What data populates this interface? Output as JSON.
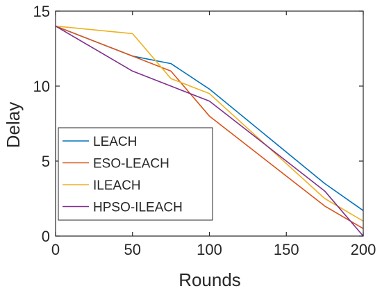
{
  "chart_data": {
    "type": "line",
    "title": "",
    "xlabel": "Rounds",
    "ylabel": "Delay",
    "xlim": [
      0,
      200
    ],
    "ylim": [
      0,
      15
    ],
    "xticks": [
      0,
      50,
      100,
      150,
      200
    ],
    "yticks": [
      0,
      5,
      10,
      15
    ],
    "xtick_labels": [
      "0",
      "50",
      "100",
      "150",
      "200"
    ],
    "ytick_labels": [
      "0",
      "5",
      "10",
      "15"
    ],
    "grid": false,
    "legend_position": "center-left",
    "series": [
      {
        "name": "LEACH",
        "color": "#0072BD",
        "x": [
          0,
          50,
          75,
          100,
          175,
          200
        ],
        "y": [
          14,
          12,
          11.5,
          9.8,
          3.5,
          1.7
        ]
      },
      {
        "name": "ESO-LEACH",
        "color": "#D95319",
        "x": [
          0,
          50,
          75,
          100,
          175,
          200
        ],
        "y": [
          14,
          12,
          11,
          8,
          2,
          0.5
        ]
      },
      {
        "name": "ILEACH",
        "color": "#EDB120",
        "x": [
          0,
          50,
          75,
          100,
          175,
          200
        ],
        "y": [
          14,
          13.5,
          10.5,
          9.5,
          2.5,
          1
        ]
      },
      {
        "name": "HPSO-ILEACH",
        "color": "#7E2F8E",
        "x": [
          0,
          50,
          75,
          100,
          175,
          200
        ],
        "y": [
          14,
          11,
          10,
          9,
          3,
          0
        ]
      }
    ]
  }
}
